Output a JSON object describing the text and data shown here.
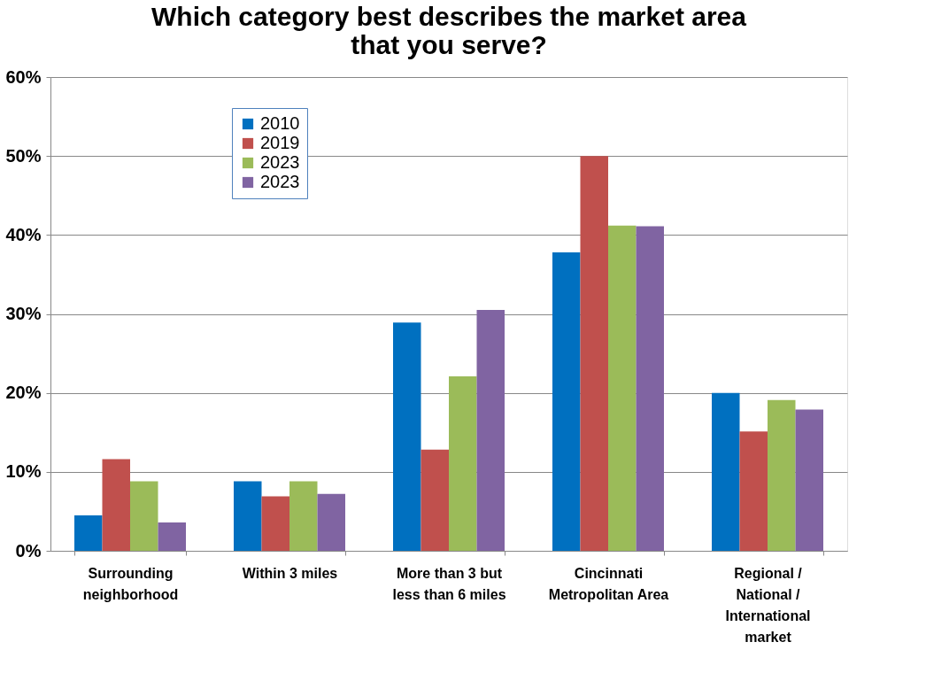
{
  "chart_data": {
    "type": "bar",
    "title": "Which category best describes the market area that you serve?",
    "categories": [
      "Surrounding neighborhood",
      "Within 3 miles",
      "More than 3 but less than 6 miles",
      "Cincinnati Metropolitan Area",
      "Regional / National / International market"
    ],
    "series": [
      {
        "name": "2010",
        "color": "#0070c0",
        "values": [
          4.5,
          8.8,
          28.9,
          37.8,
          20.0
        ]
      },
      {
        "name": "2019",
        "color": "#c0504d",
        "values": [
          11.6,
          6.9,
          12.8,
          50.0,
          15.1
        ]
      },
      {
        "name": "2023",
        "color": "#9bbb59",
        "values": [
          8.8,
          8.8,
          22.1,
          41.2,
          19.1
        ]
      },
      {
        "name": "2023",
        "color": "#8064a2",
        "values": [
          3.6,
          7.2,
          30.5,
          41.1,
          17.9
        ]
      }
    ],
    "ylim": [
      0,
      60
    ],
    "yticks": [
      {
        "value": 0,
        "label": "0%"
      },
      {
        "value": 10,
        "label": "10%"
      },
      {
        "value": 20,
        "label": "20%"
      },
      {
        "value": 30,
        "label": "30%"
      },
      {
        "value": 40,
        "label": "40%"
      },
      {
        "value": 50,
        "label": "50%"
      },
      {
        "value": 60,
        "label": "60%"
      }
    ],
    "grid": "y",
    "legend": "top left"
  }
}
